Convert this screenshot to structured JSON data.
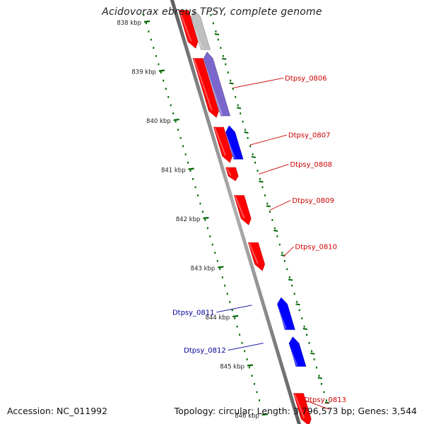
{
  "title": "Acidovorax ebreus TPSY, complete genome",
  "footer": {
    "accession": "Accession: NC_011992",
    "summary": "Topology: circular; Length: 3,796,573 bp; Genes: 3,544"
  },
  "colors": {
    "forward_gene": "#ff0000",
    "reverse_gene": "#0000ff",
    "forward_label": "#cc0000",
    "reverse_label": "#000099",
    "tick": "#006600",
    "backbone": "#7a7a7a"
  },
  "scale": {
    "ticks": [
      {
        "kbp": 838,
        "label": "838 kbp"
      },
      {
        "kbp": 839,
        "label": "839 kbp"
      },
      {
        "kbp": 840,
        "label": "840 kbp"
      },
      {
        "kbp": 841,
        "label": "841 kbp"
      },
      {
        "kbp": 842,
        "label": "842 kbp"
      },
      {
        "kbp": 843,
        "label": "843 kbp"
      },
      {
        "kbp": 844,
        "label": "844 kbp"
      },
      {
        "kbp": 845,
        "label": "845 kbp"
      },
      {
        "kbp": 846,
        "label": "846 kbp"
      }
    ]
  },
  "genes": [
    {
      "id": "gene-0805",
      "label": "",
      "strand": "forward",
      "start": 837.75,
      "end": 838.52,
      "color": "#ff0000"
    },
    {
      "id": "gene-0806",
      "label": "Dtpsy_0806",
      "strand": "forward",
      "start": 838.73,
      "end": 839.93,
      "color": "#ff0000"
    },
    {
      "id": "gene-0807",
      "label": "Dtpsy_0807",
      "strand": "forward",
      "start": 840.13,
      "end": 840.85,
      "color": "#ff0000"
    },
    {
      "id": "gene-0808",
      "label": "Dtpsy_0808",
      "strand": "forward",
      "start": 840.95,
      "end": 841.22,
      "color": "#ff0000"
    },
    {
      "id": "gene-0809",
      "label": "Dtpsy_0809",
      "strand": "forward",
      "start": 841.52,
      "end": 842.12,
      "color": "#ff0000"
    },
    {
      "id": "gene-0810",
      "label": "Dtpsy_0810",
      "strand": "forward",
      "start": 842.48,
      "end": 843.05,
      "color": "#ff0000"
    },
    {
      "id": "gene-0811",
      "label": "Dtpsy_0811",
      "strand": "reverse",
      "start": 843.6,
      "end": 844.25,
      "color": "#0000ff"
    },
    {
      "id": "gene-0812",
      "label": "Dtpsy_0812",
      "strand": "reverse",
      "start": 844.4,
      "end": 845.0,
      "color": "#0000ff"
    },
    {
      "id": "gene-0813",
      "label": "Dtpsy_0813",
      "strand": "forward",
      "start": 845.55,
      "end": 846.2,
      "color": "#ff0000"
    }
  ],
  "features": [
    {
      "id": "feature-grey",
      "strand": "reverse",
      "start": 837.75,
      "end": 838.55,
      "color": "#bfbfbf"
    },
    {
      "id": "feature-violet",
      "strand": "reverse",
      "start": 838.6,
      "end": 839.9,
      "color": "#7a66cc"
    },
    {
      "id": "feature-blue",
      "strand": "reverse",
      "start": 840.1,
      "end": 840.78,
      "color": "#0000ff"
    }
  ]
}
